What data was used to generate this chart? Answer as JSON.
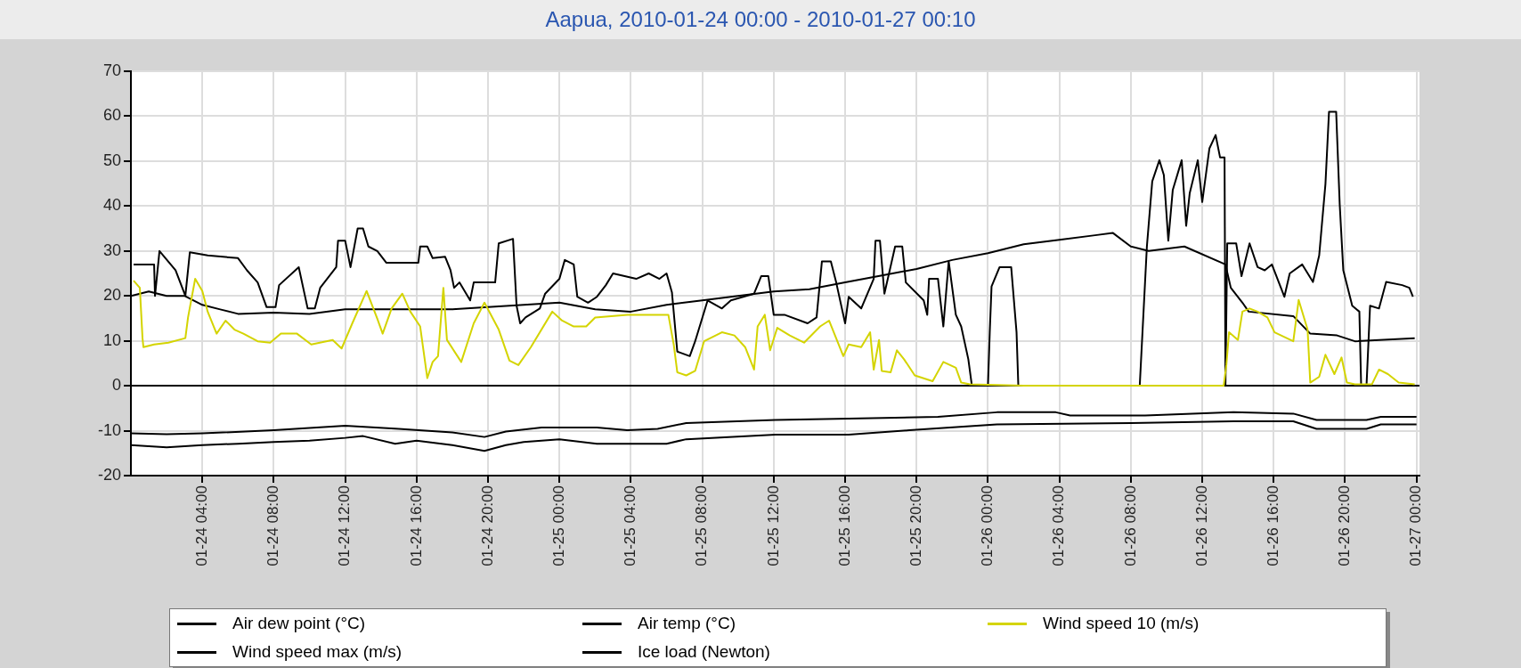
{
  "chart_data": {
    "type": "line",
    "title": "Aapua, 2010-01-24 00:00 - 2010-01-27 00:10",
    "xlim": [
      "2010-01-24T00:00",
      "2010-01-27T00:10"
    ],
    "xticks": [
      {
        "value": "2010-01-24T04:00",
        "label": "01-24 04:00"
      },
      {
        "value": "2010-01-24T08:00",
        "label": "01-24 08:00"
      },
      {
        "value": "2010-01-24T12:00",
        "label": "01-24 12:00"
      },
      {
        "value": "2010-01-24T16:00",
        "label": "01-24 16:00"
      },
      {
        "value": "2010-01-24T20:00",
        "label": "01-24 20:00"
      },
      {
        "value": "2010-01-25T00:00",
        "label": "01-25 00:00"
      },
      {
        "value": "2010-01-25T04:00",
        "label": "01-25 04:00"
      },
      {
        "value": "2010-01-25T08:00",
        "label": "01-25 08:00"
      },
      {
        "value": "2010-01-25T12:00",
        "label": "01-25 12:00"
      },
      {
        "value": "2010-01-25T16:00",
        "label": "01-25 16:00"
      },
      {
        "value": "2010-01-25T20:00",
        "label": "01-25 20:00"
      },
      {
        "value": "2010-01-26T00:00",
        "label": "01-26 00:00"
      },
      {
        "value": "2010-01-26T04:00",
        "label": "01-26 04:00"
      },
      {
        "value": "2010-01-26T08:00",
        "label": "01-26 08:00"
      },
      {
        "value": "2010-01-26T12:00",
        "label": "01-26 12:00"
      },
      {
        "value": "2010-01-26T16:00",
        "label": "01-26 16:00"
      },
      {
        "value": "2010-01-26T20:00",
        "label": "01-26 20:00"
      },
      {
        "value": "2010-01-27T00:00",
        "label": "01-27 00:00"
      }
    ],
    "ylim": [
      -20,
      70
    ],
    "yticks": [
      -20,
      -10,
      0,
      10,
      20,
      30,
      40,
      50,
      60,
      70
    ],
    "grid": true,
    "legend": "bottom",
    "ref_lines": [
      {
        "axis": "y",
        "value": 0,
        "color": "#000000"
      }
    ],
    "series": [
      {
        "name": "Air dew point (°C)",
        "color": "#000000",
        "x": [
          "2010-01-24T00:00",
          "2010-01-24T02:00",
          "2010-01-24T04:00",
          "2010-01-24T06:00",
          "2010-01-24T08:00",
          "2010-01-24T10:00",
          "2010-01-24T12:00",
          "2010-01-24T13:00",
          "2010-01-24T14:48",
          "2010-01-24T16:00",
          "2010-01-24T18:00",
          "2010-01-24T19:48",
          "2010-01-24T21:00",
          "2010-01-24T22:00",
          "2010-01-25T00:00",
          "2010-01-25T02:06",
          "2010-01-25T06:00",
          "2010-01-25T07:06",
          "2010-01-25T12:06",
          "2010-01-25T16:12",
          "2010-01-25T19:36",
          "2010-01-26T00:30",
          "2010-01-26T08:00",
          "2010-01-26T13:45",
          "2010-01-26T17:06",
          "2010-01-26T18:24",
          "2010-01-26T21:12",
          "2010-01-26T22:00",
          "2010-01-27T00:00"
        ],
        "values": [
          -13.2,
          -13.7,
          -13.2,
          -12.9,
          -12.5,
          -12.2,
          -11.6,
          -11.2,
          -12.9,
          -12.2,
          -13.2,
          -14.5,
          -13.2,
          -12.5,
          -11.9,
          -12.9,
          -12.9,
          -11.9,
          -10.9,
          -10.9,
          -9.9,
          -8.6,
          -8.3,
          -7.9,
          -7.9,
          -9.6,
          -9.6,
          -8.6,
          -8.6
        ]
      },
      {
        "name": "Air temp (°C)",
        "color": "#000000",
        "x": [
          "2010-01-24T00:00",
          "2010-01-24T02:00",
          "2010-01-24T04:00",
          "2010-01-24T08:00",
          "2010-01-24T12:00",
          "2010-01-24T15:00",
          "2010-01-24T18:00",
          "2010-01-24T19:48",
          "2010-01-24T21:00",
          "2010-01-24T23:00",
          "2010-01-25T02:06",
          "2010-01-25T03:48",
          "2010-01-25T05:30",
          "2010-01-25T07:06",
          "2010-01-25T12:06",
          "2010-01-25T16:12",
          "2010-01-25T21:12",
          "2010-01-26T00:30",
          "2010-01-26T03:48",
          "2010-01-26T04:36",
          "2010-01-26T08:48",
          "2010-01-26T13:45",
          "2010-01-26T17:06",
          "2010-01-26T18:24",
          "2010-01-26T21:12",
          "2010-01-26T22:00",
          "2010-01-27T00:00"
        ],
        "values": [
          -10.6,
          -10.8,
          -10.6,
          -9.9,
          -8.9,
          -9.6,
          -10.4,
          -11.4,
          -10.2,
          -9.3,
          -9.3,
          -9.9,
          -9.6,
          -8.3,
          -7.6,
          -7.3,
          -6.9,
          -5.9,
          -5.9,
          -6.6,
          -6.6,
          -5.9,
          -6.2,
          -7.6,
          -7.6,
          -6.9,
          -6.9
        ]
      },
      {
        "name": "Wind speed 10 (m/s)",
        "color": "#d4d400",
        "x": [
          "2010-01-24T00:09",
          "2010-01-24T00:30",
          "2010-01-24T00:39",
          "2010-01-24T00:42",
          "2010-01-24T01:18",
          "2010-01-24T02:06",
          "2010-01-24T03:03",
          "2010-01-24T03:12",
          "2010-01-24T03:36",
          "2010-01-24T04:00",
          "2010-01-24T04:18",
          "2010-01-24T04:48",
          "2010-01-24T05:18",
          "2010-01-24T05:48",
          "2010-01-24T06:18",
          "2010-01-24T07:06",
          "2010-01-24T07:48",
          "2010-01-24T08:24",
          "2010-01-24T09:18",
          "2010-01-24T10:06",
          "2010-01-24T11:18",
          "2010-01-24T11:48",
          "2010-01-24T12:24",
          "2010-01-24T13:12",
          "2010-01-24T13:48",
          "2010-01-24T14:06",
          "2010-01-24T14:36",
          "2010-01-24T15:12",
          "2010-01-24T15:39",
          "2010-01-24T16:12",
          "2010-01-24T16:36",
          "2010-01-24T16:54",
          "2010-01-24T17:12",
          "2010-01-24T17:30",
          "2010-01-24T17:42",
          "2010-01-24T18:30",
          "2010-01-24T19:12",
          "2010-01-24T19:48",
          "2010-01-24T20:36",
          "2010-01-24T21:12",
          "2010-01-24T21:42",
          "2010-01-24T22:24",
          "2010-01-24T23:36",
          "2010-01-25T00:09",
          "2010-01-25T00:48",
          "2010-01-25T01:30",
          "2010-01-25T02:00",
          "2010-01-25T03:48",
          "2010-01-25T06:06",
          "2010-01-25T06:24",
          "2010-01-25T06:36",
          "2010-01-25T07:06",
          "2010-01-25T07:36",
          "2010-01-25T08:06",
          "2010-01-25T09:06",
          "2010-01-25T09:48",
          "2010-01-25T10:24",
          "2010-01-25T10:54",
          "2010-01-25T11:06",
          "2010-01-25T11:30",
          "2010-01-25T11:48",
          "2010-01-25T12:12",
          "2010-01-25T12:54",
          "2010-01-25T13:42",
          "2010-01-25T14:36",
          "2010-01-25T15:06",
          "2010-01-25T15:54",
          "2010-01-25T16:12",
          "2010-01-25T16:54",
          "2010-01-25T17:24",
          "2010-01-25T17:36",
          "2010-01-25T17:54",
          "2010-01-25T18:03",
          "2010-01-25T18:33",
          "2010-01-25T18:54",
          "2010-01-25T19:18",
          "2010-01-25T19:54",
          "2010-01-25T20:54",
          "2010-01-25T21:30",
          "2010-01-25T22:12",
          "2010-01-25T22:30",
          "2010-01-25T23:00",
          "2010-01-26T02:00",
          "2010-01-26T07:00",
          "2010-01-26T13:12",
          "2010-01-26T13:21",
          "2010-01-26T13:30",
          "2010-01-26T14:00",
          "2010-01-26T14:15",
          "2010-01-26T14:39",
          "2010-01-26T15:06",
          "2010-01-26T15:39",
          "2010-01-26T16:03",
          "2010-01-26T17:06",
          "2010-01-26T17:24",
          "2010-01-26T17:54",
          "2010-01-26T18:03",
          "2010-01-26T18:33",
          "2010-01-26T18:54",
          "2010-01-26T19:24",
          "2010-01-26T19:48",
          "2010-01-26T20:06",
          "2010-01-26T20:33",
          "2010-01-26T21:30",
          "2010-01-26T21:54",
          "2010-01-26T22:24",
          "2010-01-26T23:00",
          "2010-01-26T23:54"
        ],
        "values": [
          23.4,
          21.8,
          10.6,
          8.6,
          9.2,
          9.6,
          10.6,
          15.2,
          23.8,
          21.1,
          16.5,
          11.6,
          14.5,
          12.5,
          11.6,
          9.9,
          9.6,
          11.6,
          11.6,
          9.2,
          10.2,
          8.3,
          13.9,
          21.1,
          14.9,
          11.6,
          17.2,
          20.5,
          16.5,
          13.2,
          1.7,
          5.3,
          6.6,
          21.8,
          10.2,
          5.3,
          13.9,
          18.5,
          12.5,
          5.6,
          4.6,
          8.6,
          16.5,
          14.5,
          13.2,
          13.2,
          15.2,
          15.8,
          15.8,
          9.2,
          3,
          2.3,
          3.3,
          9.9,
          11.9,
          11.2,
          8.6,
          3.6,
          13.2,
          15.8,
          7.9,
          12.9,
          11.2,
          9.6,
          13.2,
          14.5,
          6.6,
          9.2,
          8.6,
          11.9,
          3.6,
          10.2,
          3.3,
          3,
          7.9,
          5.9,
          2.3,
          1,
          5.3,
          4,
          0.7,
          0.3,
          0,
          0,
          0,
          4.6,
          11.9,
          10.2,
          16.5,
          17.2,
          16.5,
          15.2,
          11.9,
          9.9,
          19.1,
          12.5,
          0.7,
          2,
          6.9,
          2.6,
          6.3,
          0.7,
          0.3,
          0.3,
          3.6,
          2.6,
          0.7,
          0.3
        ]
      },
      {
        "name": "Wind speed max (m/s)",
        "color": "#000000",
        "x": [
          "2010-01-24T00:09",
          "2010-01-24T01:18",
          "2010-01-24T01:21",
          "2010-01-24T01:36",
          "2010-01-24T02:30",
          "2010-01-24T03:03",
          "2010-01-24T03:18",
          "2010-01-24T04:18",
          "2010-01-24T06:00",
          "2010-01-24T06:30",
          "2010-01-24T07:06",
          "2010-01-24T07:36",
          "2010-01-24T08:06",
          "2010-01-24T08:18",
          "2010-01-24T09:24",
          "2010-01-24T09:54",
          "2010-01-24T10:18",
          "2010-01-24T10:36",
          "2010-01-24T11:30",
          "2010-01-24T11:36",
          "2010-01-24T12:00",
          "2010-01-24T12:18",
          "2010-01-24T12:42",
          "2010-01-24T13:00",
          "2010-01-24T13:18",
          "2010-01-24T13:48",
          "2010-01-24T14:18",
          "2010-01-24T16:06",
          "2010-01-24T16:12",
          "2010-01-24T16:36",
          "2010-01-24T16:54",
          "2010-01-24T17:36",
          "2010-01-24T17:54",
          "2010-01-24T18:06",
          "2010-01-24T18:24",
          "2010-01-24T19:00",
          "2010-01-24T19:12",
          "2010-01-24T20:24",
          "2010-01-24T20:36",
          "2010-01-24T21:24",
          "2010-01-24T21:36",
          "2010-01-24T21:48",
          "2010-01-24T22:06",
          "2010-01-24T22:54",
          "2010-01-24T23:12",
          "2010-01-25T00:00",
          "2010-01-25T00:18",
          "2010-01-25T00:48",
          "2010-01-25T01:00",
          "2010-01-25T01:36",
          "2010-01-25T02:06",
          "2010-01-25T02:36",
          "2010-01-25T03:00",
          "2010-01-25T04:18",
          "2010-01-25T05:00",
          "2010-01-25T05:36",
          "2010-01-25T06:00",
          "2010-01-25T06:18",
          "2010-01-25T06:36",
          "2010-01-25T07:18",
          "2010-01-25T07:36",
          "2010-01-25T08:18",
          "2010-01-25T09:06",
          "2010-01-25T09:36",
          "2010-01-25T10:54",
          "2010-01-25T11:18",
          "2010-01-25T11:42",
          "2010-01-25T12:00",
          "2010-01-25T12:36",
          "2010-01-25T13:54",
          "2010-01-25T14:24",
          "2010-01-25T14:42",
          "2010-01-25T15:12",
          "2010-01-25T15:30",
          "2010-01-25T16:00",
          "2010-01-25T16:12",
          "2010-01-25T16:54",
          "2010-01-25T17:36",
          "2010-01-25T17:42",
          "2010-01-25T17:57",
          "2010-01-25T18:12",
          "2010-01-25T18:48",
          "2010-01-25T19:12",
          "2010-01-25T19:24",
          "2010-01-25T20:24",
          "2010-01-25T20:36",
          "2010-01-25T20:42",
          "2010-01-25T21:12",
          "2010-01-25T21:30",
          "2010-01-25T21:48",
          "2010-01-25T22:12",
          "2010-01-25T22:30",
          "2010-01-25T22:54",
          "2010-01-25T23:06",
          "2010-01-26T00:00",
          "2010-01-26T00:06",
          "2010-01-26T00:12",
          "2010-01-26T00:39",
          "2010-01-26T01:18",
          "2010-01-26T01:36",
          "2010-01-26T01:42",
          "2010-01-26T08:30",
          "2010-01-26T08:54",
          "2010-01-26T09:12",
          "2010-01-26T09:36",
          "2010-01-26T09:51",
          "2010-01-26T10:06",
          "2010-01-26T10:21",
          "2010-01-26T10:51",
          "2010-01-26T11:06",
          "2010-01-26T11:18",
          "2010-01-26T11:45",
          "2010-01-26T12:00",
          "2010-01-26T12:24",
          "2010-01-26T12:45",
          "2010-01-26T13:00",
          "2010-01-26T13:15",
          "2010-01-26T13:18",
          "2010-01-26T13:24",
          "2010-01-26T13:54",
          "2010-01-26T14:12",
          "2010-01-26T14:39",
          "2010-01-26T15:06",
          "2010-01-26T15:30",
          "2010-01-26T15:54",
          "2010-01-26T16:36",
          "2010-01-26T16:54",
          "2010-01-26T17:36",
          "2010-01-26T18:12",
          "2010-01-26T18:33",
          "2010-01-26T18:54",
          "2010-01-26T19:06",
          "2010-01-26T19:30",
          "2010-01-26T19:42",
          "2010-01-26T19:54",
          "2010-01-26T20:24",
          "2010-01-26T20:48",
          "2010-01-26T20:54",
          "2010-01-26T21:12",
          "2010-01-26T21:24",
          "2010-01-26T21:54",
          "2010-01-26T22:18",
          "2010-01-26T23:12",
          "2010-01-26T23:36",
          "2010-01-26T23:48"
        ],
        "values": [
          27,
          27,
          20,
          30,
          25.7,
          20,
          29.7,
          29,
          28.4,
          25.7,
          23,
          17.5,
          17.5,
          22.4,
          26.4,
          17.2,
          17.2,
          21.8,
          26.4,
          32.3,
          32.3,
          26.4,
          35,
          35,
          31,
          30,
          27.4,
          27.4,
          31,
          31,
          28.4,
          28.7,
          25.7,
          21.8,
          23,
          19,
          23,
          23,
          31.7,
          32.7,
          17.8,
          13.9,
          15.2,
          17.2,
          20.5,
          23.8,
          28,
          27,
          19.8,
          18.5,
          19.8,
          22.4,
          25,
          23.8,
          25,
          23.8,
          25,
          20.8,
          7.6,
          6.6,
          9.9,
          19,
          17.2,
          19,
          20.5,
          24.4,
          24.4,
          15.8,
          15.8,
          13.9,
          15.2,
          27.7,
          27.7,
          23,
          13.9,
          19.8,
          17.2,
          23.8,
          32.3,
          32.3,
          20.5,
          31,
          31,
          23,
          19,
          15.8,
          23.8,
          23.8,
          13.2,
          27.7,
          15.8,
          13.2,
          5.9,
          0,
          0,
          11.9,
          22.1,
          26.4,
          26.4,
          11.9,
          0,
          0,
          31,
          45.5,
          50.2,
          46.9,
          32.3,
          43.6,
          50.2,
          35.6,
          42.9,
          50.2,
          40.9,
          52.8,
          55.8,
          50.8,
          50.8,
          0,
          31.7,
          31.7,
          24.4,
          31.7,
          26.4,
          25.7,
          27,
          19.8,
          25,
          27,
          23.1,
          29,
          44.9,
          61,
          61,
          40.3,
          25.7,
          17.8,
          16.5,
          0,
          0,
          17.8,
          17.2,
          23.1,
          22.4,
          21.8,
          19.8
        ]
      },
      {
        "name": "Ice load (Newton)",
        "color": "#000000",
        "x": [
          "2010-01-24T00:00",
          "2010-01-24T01:00",
          "2010-01-24T02:00",
          "2010-01-24T03:00",
          "2010-01-24T04:00",
          "2010-01-24T05:00",
          "2010-01-24T06:00",
          "2010-01-24T08:00",
          "2010-01-24T10:00",
          "2010-01-24T12:00",
          "2010-01-24T14:00",
          "2010-01-24T16:00",
          "2010-01-24T18:00",
          "2010-01-24T20:00",
          "2010-01-24T22:00",
          "2010-01-25T00:00",
          "2010-01-25T02:00",
          "2010-01-25T04:00",
          "2010-01-25T06:00",
          "2010-01-25T08:00",
          "2010-01-25T10:00",
          "2010-01-25T12:00",
          "2010-01-25T14:00",
          "2010-01-25T16:00",
          "2010-01-25T18:00",
          "2010-01-25T20:00",
          "2010-01-25T22:00",
          "2010-01-26T00:00",
          "2010-01-26T02:00",
          "2010-01-26T04:00",
          "2010-01-26T06:00",
          "2010-01-26T07:00",
          "2010-01-26T08:00",
          "2010-01-26T09:00",
          "2010-01-26T11:00",
          "2010-01-26T13:18",
          "2010-01-26T13:36",
          "2010-01-26T14:15",
          "2010-01-26T14:36",
          "2010-01-26T17:06",
          "2010-01-26T18:03",
          "2010-01-26T19:33",
          "2010-01-26T20:33",
          "2010-01-26T23:54"
        ],
        "values": [
          20,
          21,
          20,
          20,
          18,
          17,
          16,
          16.3,
          16,
          17,
          17,
          17,
          17,
          17.5,
          18,
          18.5,
          17,
          16.5,
          18,
          19,
          20,
          21,
          21.5,
          23,
          24.5,
          26,
          28,
          29.5,
          31.5,
          32.5,
          33.5,
          34,
          31,
          30,
          31,
          27,
          21.8,
          18.5,
          16.5,
          15.5,
          11.6,
          11.2,
          9.9,
          10.6
        ]
      }
    ]
  }
}
